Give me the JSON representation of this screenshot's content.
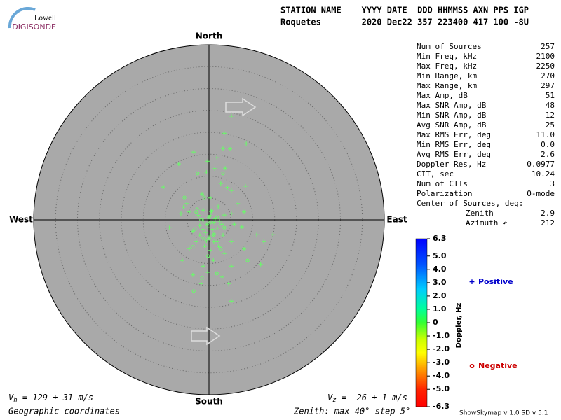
{
  "header": {
    "logo_top": "Lowell",
    "logo_bottom": "DIGISONDE",
    "line1": "STATION NAME    YYYY DATE  DDD HHMMSS AXN PPS IGP",
    "line2": "Roquetes        2020 Dec22 357 223400 417 100 -8U"
  },
  "stats": {
    "rows": [
      [
        "Num of Sources",
        "257"
      ],
      [
        "Min Freq, kHz",
        "2100"
      ],
      [
        "Max Freq, kHz",
        "2250"
      ],
      [
        "Min Range, km",
        "270"
      ],
      [
        "Max Range, km",
        "297"
      ],
      [
        "Max Amp, dB",
        "51"
      ],
      [
        "Max SNR Amp, dB",
        "48"
      ],
      [
        "Min SNR Amp, dB",
        "12"
      ],
      [
        "Avg SNR Amp, dB",
        "25"
      ],
      [
        "Max RMS Err, deg",
        "11.0"
      ],
      [
        "Min RMS Err, deg",
        "0.0"
      ],
      [
        "Avg RMS Err, deg",
        "2.6"
      ],
      [
        "Doppler Res, Hz",
        "0.0977"
      ],
      [
        "CIT, sec",
        "10.24"
      ],
      [
        "Num of CITs",
        "3"
      ],
      [
        "Polarization",
        "O-mode"
      ]
    ],
    "center_title": "Center of Sources, deg:",
    "center_rows": [
      [
        "Zenith",
        "2.9"
      ],
      [
        "Azimuth ↶",
        "212"
      ]
    ]
  },
  "chart_data": {
    "type": "skymap",
    "directions": {
      "north": "North",
      "south": "South",
      "east": "East",
      "west": "West"
    },
    "rlim": [
      0,
      40
    ],
    "rticks": [
      5,
      10,
      15,
      20,
      25,
      30,
      35
    ],
    "grid": true,
    "point_color": "#66ff66",
    "series": [
      {
        "name": "Positive",
        "color": "#0000cc",
        "marker": "+",
        "x": [
          5.1,
          3.5,
          8.5,
          3.2,
          4.8,
          -3.5,
          1.8,
          -0.3,
          -6.9,
          3.7,
          1.3,
          -0.6,
          2.7,
          4.2,
          5.1,
          -10.4,
          8.3,
          -1.6,
          0.3,
          -5.1,
          -5.8,
          2.1,
          6.6,
          -1.3,
          0.6,
          -4.5,
          -2.4,
          0.3,
          3.5,
          5.1,
          8.0,
          -6.4,
          -1.3,
          1.1,
          2.9,
          -2.1,
          -0.2,
          1.9,
          5.8,
          -9.0,
          -3.7,
          -0.8,
          1.1,
          3.2,
          7.5,
          10.9,
          14.6,
          0.0,
          -2.9,
          1.9,
          5.1,
          12.5,
          -1.0,
          2.2,
          8.0,
          -4.5,
          0.3,
          3.5,
          -6.1,
          1.0,
          11.8,
          -1.3,
          5.1,
          -0.3,
          3.0,
          -3.7,
          4.5,
          -1.8,
          5.1,
          0.5,
          0.0,
          -0.5,
          0.8,
          0.2,
          1.4,
          -1.4,
          2.4,
          -2.1,
          1.1,
          -0.6
        ],
        "y": [
          23.7,
          19.8,
          17.4,
          16.3,
          16.2,
          15.5,
          14.2,
          13.4,
          12.8,
          11.8,
          11.7,
          10.9,
          8.3,
          7.4,
          6.7,
          7.5,
          7.7,
          5.9,
          5.0,
          3.7,
          2.9,
          3.0,
          3.7,
          2.2,
          2.1,
          1.8,
          1.0,
          1.0,
          1.1,
          1.4,
          1.8,
          1.4,
          -0.2,
          -0.6,
          -1.0,
          -1.3,
          -1.8,
          -1.9,
          -1.0,
          -1.8,
          -2.6,
          -2.9,
          -3.2,
          -3.5,
          -1.6,
          -3.4,
          -3.4,
          -4.2,
          -5.0,
          -5.0,
          -5.0,
          -5.0,
          -6.1,
          -6.1,
          -6.7,
          -6.6,
          -7.0,
          -7.7,
          -9.3,
          -9.3,
          -10.2,
          -10.6,
          -10.6,
          -12.0,
          -13.1,
          -12.6,
          -14.6,
          -14.6,
          -18.6,
          1.9,
          0.6,
          -1.0,
          -2.2,
          -3.5,
          0.2,
          -2.2,
          -0.3,
          -3.5,
          -5.0,
          -4.8
        ]
      },
      {
        "name": "Negative",
        "color": "#cc0000",
        "marker": "o",
        "x": [
          -2.6,
          3.2,
          -5.6,
          -1.1,
          -2.9,
          1.9,
          -1.8,
          0.3,
          3.5,
          -3.2,
          1.1,
          -1.3,
          -3.7,
          2.7,
          8.8,
          -0.2,
          -1.6,
          1.8,
          -3.5,
          -2.7
        ],
        "y": [
          10.6,
          10.6,
          5.1,
          5.1,
          1.8,
          0.6,
          0.0,
          -0.6,
          -1.8,
          -2.1,
          -3.5,
          -4.2,
          -6.2,
          -6.6,
          -9.3,
          -8.3,
          -13.3,
          -12.3,
          -16.3,
          2.4
        ]
      }
    ],
    "colorbar": {
      "label": "Doppler, Hz",
      "lim": [
        -6.3,
        6.3
      ],
      "ticks": [
        6.3,
        {
          "value": 5,
          "label": "5.0"
        },
        {
          "value": 4,
          "label": "4.0"
        },
        {
          "value": 3,
          "label": "3.0"
        },
        {
          "value": 2,
          "label": "2.0"
        },
        {
          "value": 1,
          "label": "1.0"
        },
        0,
        {
          "value": -1,
          "label": "-1.0"
        },
        {
          "value": -2,
          "label": "-2.0"
        },
        {
          "value": -3,
          "label": "-3.0"
        },
        {
          "value": -4,
          "label": "-4.0"
        },
        {
          "value": -5,
          "label": "-5.0"
        },
        -6.3
      ]
    }
  },
  "footer": {
    "vh_symbol": "V",
    "vh_sub": "h",
    "vh_text": " = 129 ± 31 m/s",
    "vz_symbol": "V",
    "vz_sub": "z",
    "vz_text": " = -26 ± 1 m/s",
    "coords": "Geographic coordinates",
    "zenith": "Zenith: max 40°  step 5°",
    "version": "ShowSkymap v 1.0  SD v 5.1"
  }
}
